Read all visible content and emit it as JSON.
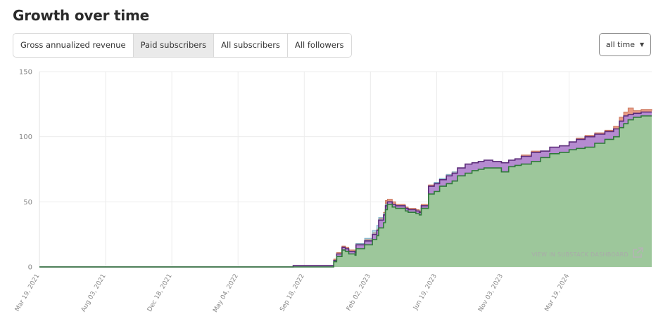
{
  "header": {
    "title": "Growth over time"
  },
  "tabs": [
    {
      "label": "Gross annualized revenue",
      "active": false
    },
    {
      "label": "Paid subscribers",
      "active": true
    },
    {
      "label": "All subscribers",
      "active": false
    },
    {
      "label": "All followers",
      "active": false
    }
  ],
  "range": {
    "selected": "all time"
  },
  "watermark": {
    "text": "VIEW IN SUBSTACK DASHBOARD"
  },
  "colors": {
    "green_fill": "#9dc79b",
    "green_line": "#2f7a3a",
    "purple_fill": "#b58bd0",
    "purple_line": "#5a2a78",
    "red_fill": "#e89b84",
    "blue_fill": "#a9d4e6",
    "grid": "#ececec",
    "axis_text": "#888888"
  },
  "chart_data": {
    "type": "area",
    "title": "",
    "xlabel": "",
    "ylabel": "",
    "ylim": [
      0,
      150
    ],
    "xlim": [
      "2021-03-19",
      "2024-09-06"
    ],
    "y_ticks": [
      "0",
      "50",
      "100",
      "150"
    ],
    "x_ticks": [
      "Mar 19, 2021",
      "Aug 03, 2021",
      "Dec 18, 2021",
      "May 04, 2022",
      "Sep 18, 2022",
      "Feb 02, 2023",
      "Jun 19, 2023",
      "Nov 03, 2023",
      "Mar 19, 2024"
    ],
    "grid": true,
    "legend": "none",
    "x": [
      "2021-03-19",
      "2022-08-26",
      "2022-10-31",
      "2022-11-08",
      "2022-11-13",
      "2022-11-18",
      "2022-11-24",
      "2022-12-05",
      "2022-12-12",
      "2022-12-19",
      "2023-01-01",
      "2023-01-03",
      "2023-01-21",
      "2023-02-02",
      "2023-02-06",
      "2023-02-15",
      "2023-02-19",
      "2023-03-01",
      "2023-03-05",
      "2023-03-09",
      "2023-03-19",
      "2023-03-26",
      "2023-04-02",
      "2023-04-15",
      "2023-04-21",
      "2023-05-07",
      "2023-05-11",
      "2023-05-14",
      "2023-05-18",
      "2023-06-02",
      "2023-06-14",
      "2023-06-25",
      "2023-07-09",
      "2023-07-21",
      "2023-08-01",
      "2023-08-17",
      "2023-08-31",
      "2023-09-13",
      "2023-09-25",
      "2023-10-13",
      "2023-10-31",
      "2023-11-15",
      "2023-11-28",
      "2023-12-11",
      "2024-01-01",
      "2024-01-20",
      "2024-02-08",
      "2024-02-28",
      "2024-03-19",
      "2024-04-03",
      "2024-04-21",
      "2024-05-11",
      "2024-06-01",
      "2024-06-19",
      "2024-07-01",
      "2024-07-10",
      "2024-07-19",
      "2024-07-30",
      "2024-08-15",
      "2024-09-06"
    ],
    "series": [
      {
        "name": "",
        "values": [
          0,
          0,
          0,
          0,
          0,
          4,
          8,
          13,
          12,
          10,
          9,
          14,
          17,
          17,
          21,
          24,
          30,
          34,
          44,
          48,
          46,
          45,
          45,
          43,
          42,
          41,
          41,
          40,
          45,
          56,
          58,
          62,
          64,
          66,
          70,
          72,
          74,
          75,
          76,
          76,
          73,
          77,
          78,
          79,
          81,
          84,
          87,
          88,
          90,
          91,
          92,
          95,
          98,
          100,
          107,
          110,
          113,
          115,
          116,
          116
        ]
      },
      {
        "name": "",
        "values": [
          0,
          1,
          1,
          1,
          1,
          5,
          10,
          15,
          14,
          12,
          11,
          17,
          20,
          20,
          25,
          28,
          36,
          40,
          47,
          50,
          48,
          47,
          47,
          45,
          44,
          43,
          43,
          42,
          47,
          62,
          64,
          67,
          70,
          72,
          76,
          79,
          80,
          81,
          82,
          81,
          80,
          82,
          83,
          85,
          88,
          89,
          92,
          93,
          96,
          98,
          100,
          102,
          104,
          106,
          112,
          116,
          117,
          118,
          119,
          119
        ]
      },
      {
        "name": "",
        "values": [
          0,
          1,
          1,
          1,
          1,
          6,
          11,
          16,
          15,
          13,
          12,
          18,
          21,
          21,
          26,
          29,
          37,
          42,
          51,
          52,
          50,
          48,
          48,
          46,
          45,
          44,
          44,
          43,
          48,
          63,
          65,
          67,
          71,
          73,
          76,
          79,
          80,
          81,
          82,
          81,
          80,
          82,
          83,
          86,
          89,
          89,
          92,
          93,
          96,
          99,
          101,
          103,
          105,
          108,
          115,
          119,
          122,
          120,
          121,
          120
        ]
      },
      {
        "name": "",
        "values": [
          0,
          1,
          1,
          1,
          1,
          5,
          10,
          15,
          14,
          12,
          12,
          18,
          22,
          22,
          28,
          32,
          38,
          41,
          48,
          50,
          48,
          47,
          47,
          45,
          44,
          43,
          43,
          42,
          47,
          62,
          65,
          68,
          71,
          73,
          76,
          79,
          80,
          81,
          82,
          81,
          80,
          82,
          83,
          85,
          88,
          89,
          92,
          93,
          96,
          98,
          100,
          102,
          104,
          106,
          112,
          116,
          117,
          118,
          119,
          119
        ]
      }
    ]
  }
}
